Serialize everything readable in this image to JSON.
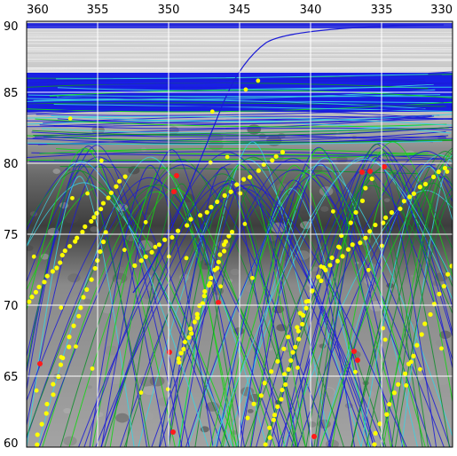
{
  "map": {
    "x_axis": {
      "from": 360,
      "to": 330,
      "step": 5,
      "label_values": [
        "360",
        "355",
        "350",
        "345",
        "340",
        "335",
        "330"
      ]
    },
    "y_axis": {
      "from": 60,
      "to": 90,
      "step": 5,
      "label_values": [
        "60",
        "65",
        "70",
        "75",
        "80",
        "85",
        "90"
      ]
    },
    "grid": true,
    "colors": {
      "terrain_dark": "#3a3a3a",
      "terrain_light": "#9a9a9a",
      "polar_band": "#0a10e6",
      "track_blue": "#1b1bd6",
      "track_green": "#12d612",
      "track_cyan": "#39d2e0",
      "track_darkgreen": "#0e8f2a",
      "grid_line": "#ffffff",
      "point_yellow": "#ffff00",
      "point_red": "#ff1a1a"
    },
    "icons": [
      "yellow-observation-point",
      "red-observation-point"
    ]
  }
}
